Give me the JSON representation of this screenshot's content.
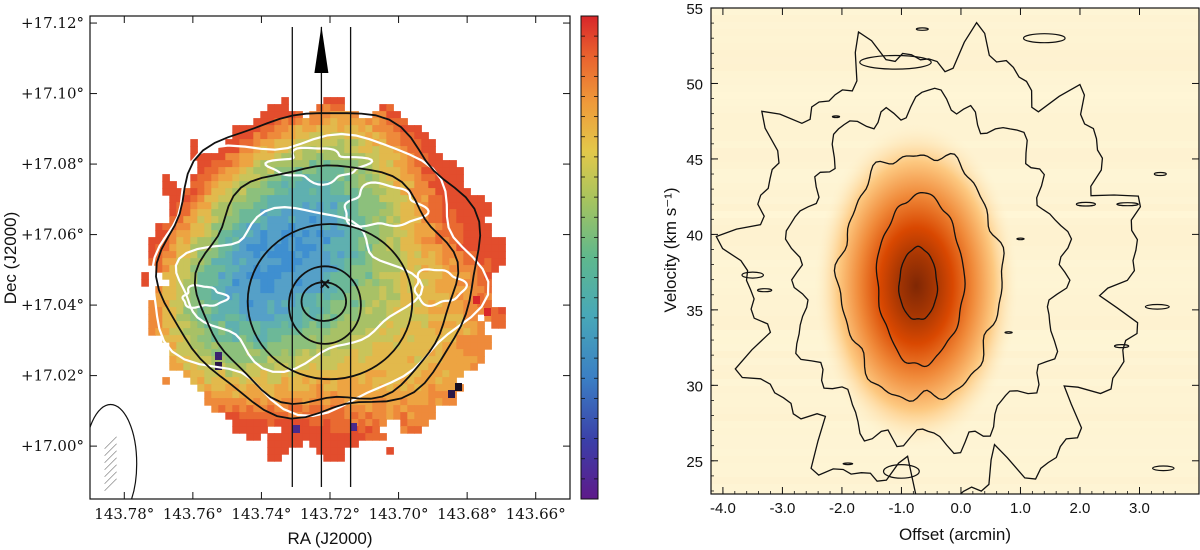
{
  "chart_data": [
    {
      "type": "heatmap",
      "panel": "left",
      "title": "",
      "xlabel": "RA (J2000)",
      "ylabel": "Dec (J2000)",
      "xlim": [
        143.79,
        143.65
      ],
      "ylim": [
        16.985,
        17.122
      ],
      "x_ticks": [
        143.78,
        143.76,
        143.74,
        143.72,
        143.7,
        143.68,
        143.66
      ],
      "x_tick_labels": [
        "143.78°",
        "143.76°",
        "143.74°",
        "143.72°",
        "143.70°",
        "143.68°",
        "143.66°"
      ],
      "y_ticks": [
        17.0,
        17.02,
        17.04,
        17.06,
        17.08,
        17.1,
        17.12
      ],
      "y_tick_labels": [
        "+17.00°",
        "+17.02°",
        "+17.04°",
        "+17.06°",
        "+17.08°",
        "+17.10°",
        "+17.12°"
      ],
      "map_center": [
        143.722,
        17.048
      ],
      "map_radius_ra": 0.051,
      "map_radius_dec": 0.049,
      "colormap": "rainbow (purple-blue-green-yellow-orange-red)",
      "colorbar": true,
      "slice_lines_ra": [
        143.731,
        143.7225,
        143.714
      ],
      "arrow_ra": 143.7225,
      "marker_cross": [
        143.7215,
        17.046
      ],
      "black_contours": [
        {
          "ra": [
            143.7218,
            143.7218
          ],
          "dec": [
            17.041,
            17.041
          ],
          "r_ra": 0.0065,
          "r_dec": 0.0055
        },
        {
          "ra": [
            143.7215
          ],
          "dec": [
            17.04
          ],
          "r_ra": 0.0105,
          "r_dec": 0.011
        },
        {
          "ra": [
            143.72
          ],
          "dec": [
            17.041
          ],
          "r_ra": 0.024,
          "r_dec": 0.022
        },
        {
          "ra": [
            143.721
          ],
          "dec": [
            17.046
          ],
          "r_ra": 0.037,
          "r_dec": 0.034
        },
        {
          "ra": [
            143.723
          ],
          "dec": [
            17.052
          ],
          "r_ra": 0.046,
          "r_dec": 0.043
        }
      ],
      "beam_ellipse": {
        "ra": 143.784,
        "dec": 16.995,
        "width_deg": 0.004,
        "height_deg": 0.016
      }
    },
    {
      "type": "heatmap",
      "panel": "right",
      "title": "",
      "xlabel": "Offset (arcmin)",
      "ylabel": "Velocity (km s⁻¹)",
      "xlim": [
        -4.2,
        4.0
      ],
      "ylim": [
        22.8,
        55.0
      ],
      "x_ticks": [
        -4.0,
        -3.0,
        -2.0,
        -1.0,
        0.0,
        1.0,
        2.0,
        3.0
      ],
      "x_tick_labels": [
        "-4.0",
        "-3.0",
        "-2.0",
        "-1.0",
        "0.0",
        "1.0",
        "2.0",
        "3.0"
      ],
      "y_ticks": [
        25,
        30,
        35,
        40,
        45,
        50,
        55
      ],
      "y_tick_labels": [
        "25",
        "30",
        "35",
        "40",
        "45",
        "50",
        "55"
      ],
      "colormap": "YlOrBr",
      "peak": {
        "offset": -0.75,
        "velocity": 36.6
      },
      "contours": [
        {
          "offset": -0.72,
          "velocity": 36.7,
          "r_off": 0.32,
          "r_vel": 2.4
        },
        {
          "offset": -0.68,
          "velocity": 37.0,
          "r_off": 0.72,
          "r_vel": 5.6
        },
        {
          "offset": -0.68,
          "velocity": 37.2,
          "r_off": 1.35,
          "r_vel": 8.2
        },
        {
          "offset": -0.55,
          "velocity": 37.5,
          "r_off": 2.25,
          "r_vel": 11.3
        },
        {
          "offset": -0.4,
          "velocity": 37.6,
          "r_off": 3.25,
          "r_vel": 14.6
        }
      ]
    }
  ]
}
